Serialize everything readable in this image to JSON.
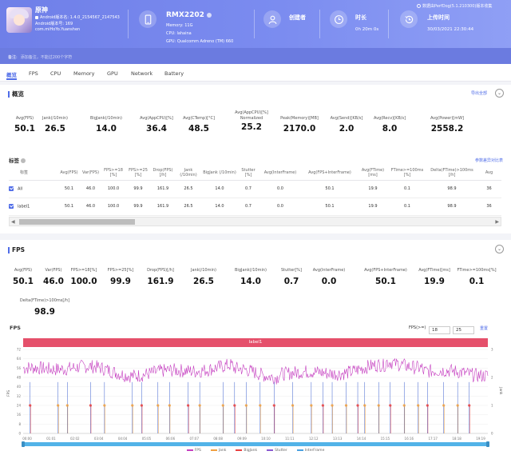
{
  "header": {
    "app_name": "原神",
    "app_version_line": "Android版本名: 1.4.0_2154567_2147543",
    "app_code_line": "Android版本号: 169",
    "package": "com.miHoYo.Yuanshen",
    "device": {
      "name": "RMX2202",
      "memory": "Memory: 11G",
      "cpu": "CPU: lahaina",
      "gpu": "GPU: Qualcomm Adreno (TM) 660"
    },
    "creator_title": "创建者",
    "duration_title": "时长",
    "duration_value": "0h 20m 0s",
    "upload_title": "上传时间",
    "upload_value": "30/03/2021 22:30:44",
    "perfdog_note": "数据由PerfDog(5.1.210300)版本收集",
    "colors": {
      "header_start": "#6f7fe8",
      "header_end": "#8f9ff5",
      "accent": "#4f6ce8"
    }
  },
  "remark": {
    "label": "备注:",
    "placeholder": "添加备注，不能过200个字符"
  },
  "tabs": [
    "概览",
    "FPS",
    "CPU",
    "Memory",
    "GPU",
    "Network",
    "Battery"
  ],
  "overview": {
    "title": "概览",
    "export_label": "导出全部",
    "metrics": [
      {
        "label": "Avg(FPS)",
        "value": "50.1"
      },
      {
        "label": "Jank(/10min)",
        "value": "26.5"
      },
      {
        "label": "BigJank(/10min)",
        "value": "14.0"
      },
      {
        "label": "Avg(AppCPU)[%]",
        "value": "36.4"
      },
      {
        "label": "Avg(CTemp)[°C]",
        "value": "48.5"
      },
      {
        "label": "Avg(AppCPU)[%] Normalized",
        "value": "25.2"
      },
      {
        "label": "Peak(Memory)[MB]",
        "value": "2170.0"
      },
      {
        "label": "Avg(Send)[KB/s]",
        "value": "2.0"
      },
      {
        "label": "Avg(Recv)[KB/s]",
        "value": "8.0"
      },
      {
        "label": "Avg(Power)[mW]",
        "value": "2558.2"
      }
    ]
  },
  "labels_table": {
    "title": "标签",
    "compare_link": "参数差异对比表",
    "columns": [
      "标签",
      "Avg(FPS)",
      "Var(FPS)",
      "FPS>=18 [%]",
      "FPS>=25 [%]",
      "Drop(FPS) [/h]",
      "Jank (/10min)",
      "BigJank (/10min)",
      "Stutter [%]",
      "Avg(InterFrame)",
      "Avg(FPS+InterFrame)",
      "Avg(FTime) [ms]",
      "FTime>=100ms [%]",
      "Delta(FTime)>100ms [/h]",
      "Avg"
    ],
    "rows": [
      {
        "name": "All",
        "cells": [
          "50.1",
          "46.0",
          "100.0",
          "99.9",
          "161.9",
          "26.5",
          "14.0",
          "0.7",
          "0.0",
          "50.1",
          "19.9",
          "0.1",
          "98.9",
          "36"
        ]
      },
      {
        "name": "label1",
        "cells": [
          "50.1",
          "46.0",
          "100.0",
          "99.9",
          "161.9",
          "26.5",
          "14.0",
          "0.7",
          "0.0",
          "50.1",
          "19.9",
          "0.1",
          "98.9",
          "36"
        ]
      }
    ]
  },
  "fps_section": {
    "title": "FPS",
    "metrics": [
      {
        "label": "Avg(FPS)",
        "value": "50.1"
      },
      {
        "label": "Var(FPS)",
        "value": "46.0"
      },
      {
        "label": "FPS>=18[%]",
        "value": "100.0"
      },
      {
        "label": "FPS>=25[%]",
        "value": "99.9"
      },
      {
        "label": "Drop(FPS)[/h]",
        "value": "161.9"
      },
      {
        "label": "Jank(/10min)",
        "value": "26.5"
      },
      {
        "label": "BigJank(/10min)",
        "value": "14.0"
      },
      {
        "label": "Stutter[%]",
        "value": "0.7"
      },
      {
        "label": "Avg(InterFrame)",
        "value": "0.0"
      },
      {
        "label": "Avg(FPS+InterFrame)",
        "value": "50.1"
      },
      {
        "label": "Avg(FTime)[ms]",
        "value": "19.9"
      },
      {
        "label": "FTime>=100ms[%]",
        "value": "0.1"
      },
      {
        "label": "Delta(FTime)>100ms[/h]",
        "value": "98.9"
      }
    ],
    "chart_title": "FPS",
    "threshold_label": "FPS(>=)",
    "threshold_1": "18",
    "threshold_2": "25",
    "apply_label": "重置"
  },
  "chart_data": {
    "type": "line",
    "label_band": "label1",
    "y_left_label": "FPS",
    "y_right_label": "Jank",
    "y_left_ticks": [
      "0",
      "8",
      "16",
      "24",
      "32",
      "40",
      "48",
      "56",
      "64",
      "72"
    ],
    "y_right_ticks": [
      "0",
      "1",
      "2",
      "3"
    ],
    "ylim": [
      0,
      72
    ],
    "y2lim": [
      0,
      3
    ],
    "x_ticks": [
      "00:00",
      "01:01",
      "02:02",
      "03:04",
      "04:04",
      "05:05",
      "06:06",
      "07:07",
      "08:08",
      "09:09",
      "10:10",
      "11:11",
      "12:12",
      "13:13",
      "14:14",
      "15:15",
      "16:16",
      "17:17",
      "18:18",
      "19:19"
    ],
    "series": [
      {
        "name": "FPS",
        "color": "#c53fc0",
        "description": "fluctuating mostly between 42 and 62, avg 50.1"
      },
      {
        "name": "Jank",
        "color": "#f0a040"
      },
      {
        "name": "BigJank",
        "color": "#e84040"
      },
      {
        "name": "Stutter",
        "color": "#8a5ad0"
      },
      {
        "name": "InterFrame",
        "color": "#4aa0e0"
      }
    ],
    "jank_events_minutes": [
      0.3,
      1.5,
      1.9,
      2.9,
      3.5,
      4.7,
      5.1,
      5.8,
      6.3,
      7.1,
      7.6,
      8.6,
      9.1,
      9.6,
      10.2,
      10.8,
      11.6,
      12.4,
      12.9,
      13.3,
      13.9,
      14.4,
      14.7,
      15.3,
      15.8,
      16.4,
      17.0,
      17.4,
      18.1,
      18.7,
      19.2
    ],
    "grid": true,
    "legend_position": "bottom"
  }
}
